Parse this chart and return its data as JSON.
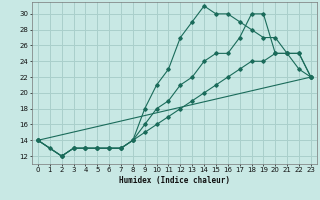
{
  "xlabel": "Humidex (Indice chaleur)",
  "background_color": "#c8e8e4",
  "grid_color": "#aacfcb",
  "line_color": "#1a6b5a",
  "xlim": [
    -0.5,
    23.5
  ],
  "ylim": [
    11,
    31.5
  ],
  "xticks": [
    0,
    1,
    2,
    3,
    4,
    5,
    6,
    7,
    8,
    9,
    10,
    11,
    12,
    13,
    14,
    15,
    16,
    17,
    18,
    19,
    20,
    21,
    22,
    23
  ],
  "yticks": [
    12,
    14,
    16,
    18,
    20,
    22,
    24,
    26,
    28,
    30
  ],
  "line1_x": [
    0,
    1,
    2,
    3,
    4,
    5,
    6,
    7,
    8,
    9,
    10,
    11,
    12,
    13,
    14,
    15,
    16,
    17,
    18,
    19,
    20,
    21,
    22,
    23
  ],
  "line1_y": [
    14,
    13,
    12,
    13,
    13,
    13,
    13,
    13,
    14,
    18,
    21,
    23,
    27,
    29,
    31,
    30,
    30,
    29,
    28,
    27,
    27,
    25,
    25,
    22
  ],
  "line2_x": [
    0,
    2,
    3,
    4,
    5,
    6,
    7,
    8,
    9,
    10,
    11,
    12,
    13,
    14,
    15,
    16,
    17,
    18,
    19,
    20,
    21,
    22,
    23
  ],
  "line2_y": [
    14,
    12,
    13,
    13,
    13,
    13,
    13,
    14,
    16,
    18,
    19,
    21,
    22,
    24,
    25,
    25,
    27,
    30,
    30,
    25,
    25,
    23,
    22
  ],
  "line3_x": [
    0,
    23
  ],
  "line3_y": [
    14,
    22
  ],
  "line4_x": [
    0,
    2,
    3,
    4,
    5,
    6,
    7,
    8,
    9,
    10,
    11,
    12,
    13,
    14,
    15,
    16,
    17,
    18,
    19,
    20,
    21,
    22,
    23
  ],
  "line4_y": [
    14,
    12,
    13,
    13,
    13,
    13,
    13,
    14,
    15,
    16,
    17,
    18,
    19,
    20,
    21,
    22,
    23,
    24,
    24,
    25,
    25,
    25,
    22
  ]
}
